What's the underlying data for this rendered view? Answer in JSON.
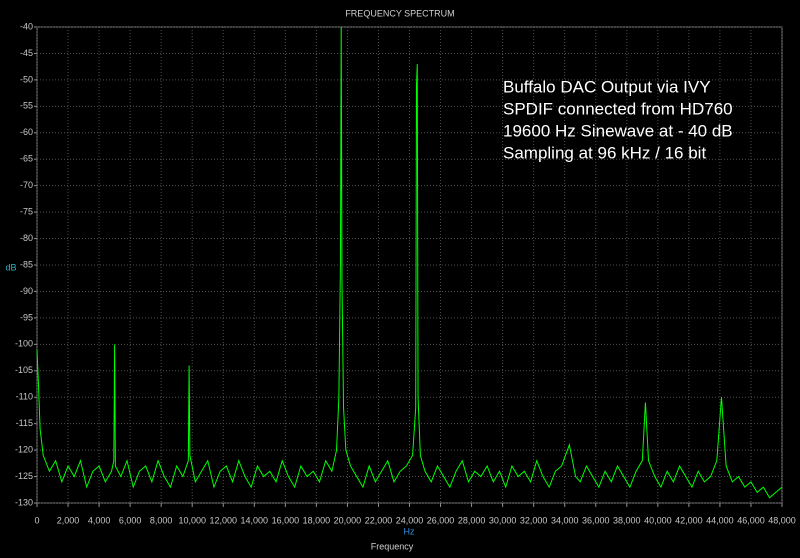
{
  "chart_data": {
    "type": "line",
    "title": "FREQUENCY SPECTRUM",
    "xlabel": "Frequency",
    "x_unit": "Hz",
    "ylabel": "dB",
    "annotation": [
      "Buffalo DAC Output via IVY",
      "SPDIF connected from HD760",
      "19600 Hz Sinewave at - 40 dB",
      "Sampling at 96 kHz / 16 bit"
    ],
    "grid": true,
    "xlim": [
      0,
      48000
    ],
    "xticks": [
      0,
      {
        "value": 2000,
        "label": "2,000"
      },
      {
        "value": 4000,
        "label": "4,000"
      },
      {
        "value": 6000,
        "label": "6,000"
      },
      {
        "value": 8000,
        "label": "8,000"
      },
      {
        "value": 10000,
        "label": "10,000"
      },
      {
        "value": 12000,
        "label": "12,000"
      },
      {
        "value": 14000,
        "label": "14,000"
      },
      {
        "value": 16000,
        "label": "16,000"
      },
      {
        "value": 18000,
        "label": "18,000"
      },
      {
        "value": 20000,
        "label": "20,000"
      },
      {
        "value": 22000,
        "label": "22,000"
      },
      {
        "value": 24000,
        "label": "24,000"
      },
      {
        "value": 26000,
        "label": "26,000"
      },
      {
        "value": 28000,
        "label": "28,000"
      },
      {
        "value": 30000,
        "label": "30,000"
      },
      {
        "value": 32000,
        "label": "32,000"
      },
      {
        "value": 34000,
        "label": "34,000"
      },
      {
        "value": 36000,
        "label": "36,000"
      },
      {
        "value": 38000,
        "label": "38,000"
      },
      {
        "value": 40000,
        "label": "40,000"
      },
      {
        "value": 42000,
        "label": "42,000"
      },
      {
        "value": 44000,
        "label": "44,000"
      },
      {
        "value": 46000,
        "label": "46,000"
      },
      {
        "value": 48000,
        "label": "48,000"
      }
    ],
    "ylim": [
      -130,
      -40
    ],
    "yticks": [
      -40,
      -45,
      -50,
      -55,
      -60,
      -65,
      -70,
      -75,
      -80,
      -85,
      -90,
      -95,
      -100,
      -105,
      -110,
      -115,
      -120,
      -125,
      -130
    ],
    "x": [
      0,
      100,
      200,
      400,
      800,
      1200,
      1600,
      2000,
      2400,
      2800,
      3200,
      3600,
      4000,
      4400,
      4800,
      4950,
      5000,
      5050,
      5400,
      5800,
      6200,
      6600,
      7000,
      7400,
      7800,
      8200,
      8600,
      9000,
      9400,
      9750,
      9800,
      9850,
      10200,
      10600,
      11000,
      11400,
      11800,
      12200,
      12600,
      13000,
      13400,
      13800,
      14200,
      14600,
      15000,
      15400,
      15800,
      16200,
      16600,
      17000,
      17400,
      17800,
      18200,
      18600,
      19000,
      19300,
      19450,
      19550,
      19600,
      19650,
      19750,
      19900,
      20200,
      20600,
      21000,
      21400,
      21800,
      22200,
      22600,
      23000,
      23400,
      23800,
      24200,
      24400,
      24450,
      24500,
      24550,
      24700,
      25000,
      25400,
      25800,
      26200,
      26600,
      27000,
      27400,
      27800,
      28200,
      28600,
      29000,
      29400,
      29800,
      30200,
      30600,
      31000,
      31400,
      31800,
      32200,
      32600,
      33000,
      33400,
      33800,
      34300,
      34700,
      35000,
      35400,
      35800,
      36200,
      36600,
      37000,
      37400,
      37800,
      38200,
      38600,
      39000,
      39200,
      39400,
      39800,
      40200,
      40600,
      41000,
      41400,
      41800,
      42200,
      42600,
      43000,
      43400,
      43800,
      44100,
      44400,
      44800,
      45200,
      45600,
      46000,
      46400,
      46800,
      47200,
      47600,
      48000
    ],
    "series": [
      {
        "color": "#00ff00",
        "values": [
          -101,
          -108,
          -116,
          -121,
          -124,
          -122,
          -126,
          -123,
          -125,
          -122,
          -127,
          -124,
          -123,
          -126,
          -124,
          -122,
          -100,
          -123,
          -125,
          -122,
          -127,
          -124,
          -123,
          -126,
          -122,
          -125,
          -127,
          -123,
          -125,
          -122,
          -104,
          -121,
          -126,
          -124,
          -122,
          -127,
          -124,
          -123,
          -126,
          -122,
          -125,
          -127,
          -123,
          -125,
          -124,
          -126,
          -122,
          -125,
          -127,
          -123,
          -125,
          -124,
          -126,
          -122,
          -124,
          -120,
          -110,
          -85,
          -40,
          -88,
          -112,
          -120,
          -123,
          -125,
          -127,
          -123,
          -126,
          -124,
          -122,
          -126,
          -124,
          -123,
          -121,
          -112,
          -51,
          -47,
          -110,
          -121,
          -124,
          -126,
          -123,
          -125,
          -127,
          -124,
          -122,
          -126,
          -124,
          -125,
          -123,
          -126,
          -124,
          -127,
          -123,
          -125,
          -124,
          -126,
          -122,
          -125,
          -127,
          -124,
          -123,
          -119,
          -125,
          -126,
          -123,
          -125,
          -127,
          -124,
          -126,
          -123,
          -125,
          -127,
          -124,
          -122,
          -111,
          -122,
          -125,
          -127,
          -124,
          -126,
          -123,
          -125,
          -127,
          -124,
          -126,
          -125,
          -122,
          -110,
          -123,
          -126,
          -125,
          -127,
          -126,
          -128,
          -127,
          -129,
          -128,
          -127
        ]
      }
    ]
  }
}
